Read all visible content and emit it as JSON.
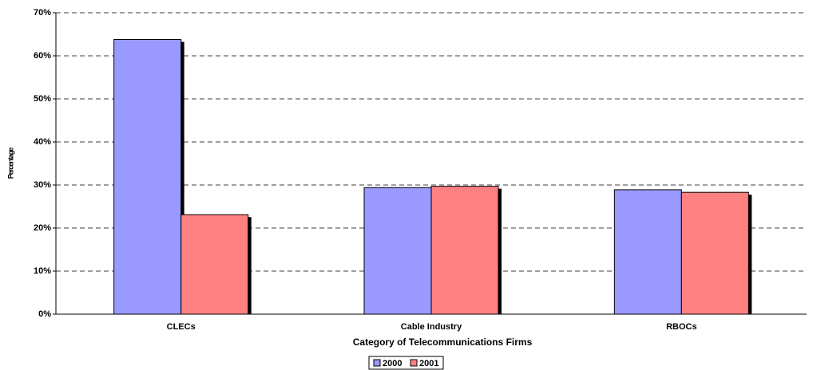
{
  "chart_data": {
    "type": "bar",
    "x_label": "Category of Telecommunications Firms",
    "y_label": "Percentage",
    "categories": [
      "CLECs",
      "Cable Industry",
      "RBOCs"
    ],
    "series": [
      {
        "name": "2000",
        "color": "#9999ff",
        "values": [
          63.8,
          29.4,
          28.9
        ]
      },
      {
        "name": "2001",
        "color": "#ff8080",
        "values": [
          23.1,
          29.7,
          28.3
        ]
      }
    ],
    "ylim": [
      0,
      70
    ],
    "yticks": [
      {
        "value": 0,
        "label": "0%"
      },
      {
        "value": 10,
        "label": "10%"
      },
      {
        "value": 20,
        "label": "20%"
      },
      {
        "value": 30,
        "label": "30%"
      },
      {
        "value": 40,
        "label": "40%"
      },
      {
        "value": 50,
        "label": "50%"
      },
      {
        "value": 60,
        "label": "60%"
      },
      {
        "value": 70,
        "label": "70%"
      }
    ],
    "grid": true,
    "legend": "bottom"
  }
}
